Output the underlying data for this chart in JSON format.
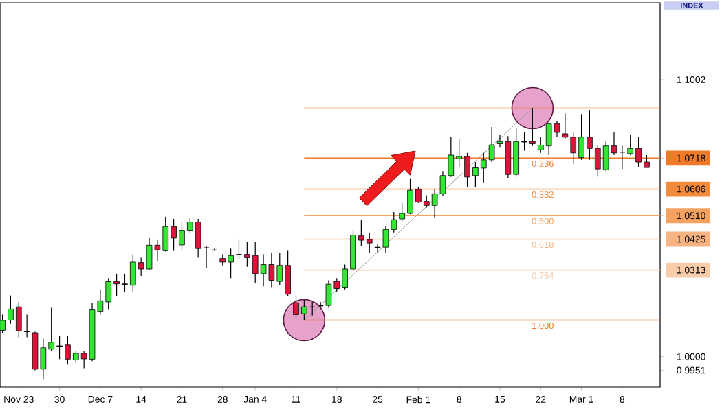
{
  "chart_data": {
    "type": "candlestick",
    "categories": [
      null,
      null,
      "Nov 23",
      null,
      null,
      null,
      null,
      "30",
      null,
      null,
      null,
      null,
      "Dec 7",
      null,
      null,
      null,
      null,
      "14",
      null,
      null,
      null,
      null,
      "21",
      null,
      null,
      null,
      null,
      "28",
      null,
      null,
      null,
      "Jan 4",
      null,
      null,
      null,
      null,
      "11",
      null,
      null,
      null,
      null,
      "18",
      null,
      null,
      null,
      null,
      "25",
      null,
      null,
      null,
      null,
      "Feb 1",
      null,
      null,
      null,
      null,
      "8",
      null,
      null,
      null,
      null,
      "15",
      null,
      null,
      null,
      null,
      "22",
      null,
      null,
      null,
      null,
      "Mar 1",
      null,
      null,
      null,
      null,
      "8",
      null,
      null,
      null
    ],
    "ohlc": [
      [
        1.0095,
        1.0152,
        1.0086,
        1.0131
      ],
      [
        1.0132,
        1.0221,
        1.0119,
        1.0172
      ],
      [
        1.018,
        1.0197,
        1.007,
        1.0093
      ],
      [
        1.0091,
        1.0152,
        1.007,
        1.009
      ],
      [
        1.0086,
        1.009,
        0.9951,
        0.9955
      ],
      [
        0.9955,
        1.0065,
        0.9917,
        1.0032
      ],
      [
        1.0027,
        1.0177,
        1.002,
        1.0052
      ],
      [
        1.0039,
        1.0075,
        0.9991,
        1.0037
      ],
      [
        1.0042,
        1.0075,
        0.9971,
        0.9991
      ],
      [
        0.9988,
        1.002,
        0.9979,
        1.0012
      ],
      [
        1.0012,
        1.002,
        0.9958,
        0.9992
      ],
      [
        0.9991,
        1.0193,
        0.9984,
        1.0169
      ],
      [
        1.0164,
        1.0243,
        1.0152,
        1.0202
      ],
      [
        1.0198,
        1.0284,
        1.0169,
        1.0271
      ],
      [
        1.0271,
        1.03,
        1.0218,
        1.0263
      ],
      [
        1.0263,
        1.03,
        1.0235,
        1.0261
      ],
      [
        1.0258,
        1.037,
        1.0235,
        1.0342
      ],
      [
        1.034,
        1.0358,
        1.0292,
        1.0317
      ],
      [
        1.0317,
        1.0429,
        1.0312,
        1.0403
      ],
      [
        1.0403,
        1.0422,
        1.0347,
        1.0386
      ],
      [
        1.0383,
        1.0506,
        1.038,
        1.047
      ],
      [
        1.047,
        1.0498,
        1.0383,
        1.0429
      ],
      [
        1.0404,
        1.0485,
        1.0386,
        1.0457
      ],
      [
        1.0457,
        1.0501,
        1.0449,
        1.0487
      ],
      [
        1.0487,
        1.0498,
        1.0358,
        1.0391
      ],
      [
        1.0394,
        1.0399,
        1.032,
        1.0393
      ],
      [
        1.0386,
        1.0391,
        1.0383,
        1.0385
      ],
      [
        1.0355,
        1.037,
        1.033,
        1.0342
      ],
      [
        1.0342,
        1.0391,
        1.0284,
        1.0366
      ],
      [
        1.037,
        1.0422,
        1.0353,
        1.0368
      ],
      [
        1.037,
        1.0416,
        1.0325,
        1.0358
      ],
      [
        1.0366,
        1.0416,
        1.0267,
        1.03
      ],
      [
        1.03,
        1.037,
        1.0254,
        1.0333
      ],
      [
        1.0333,
        1.0374,
        1.0251,
        1.0276
      ],
      [
        1.0272,
        1.0374,
        1.0259,
        1.033
      ],
      [
        1.033,
        1.0383,
        1.0218,
        1.0226
      ],
      [
        1.0195,
        1.0218,
        1.0144,
        1.0152
      ],
      [
        1.0155,
        1.021,
        1.0132,
        1.018
      ],
      [
        1.018,
        1.0202,
        1.0149,
        1.0179
      ],
      [
        1.0185,
        1.0198,
        1.0169,
        1.0183
      ],
      [
        1.0185,
        1.0276,
        1.0177,
        1.0262
      ],
      [
        1.0272,
        1.0284,
        1.0234,
        1.0246
      ],
      [
        1.0251,
        1.0333,
        1.0243,
        1.0317
      ],
      [
        1.0317,
        1.0457,
        1.0314,
        1.044
      ],
      [
        1.0437,
        1.0495,
        1.0399,
        1.0421
      ],
      [
        1.0424,
        1.0449,
        1.0374,
        1.0411
      ],
      [
        1.0396,
        1.0407,
        1.0374,
        1.0394
      ],
      [
        1.0396,
        1.0473,
        1.0374,
        1.046
      ],
      [
        1.046,
        1.0523,
        1.0449,
        1.0495
      ],
      [
        1.0498,
        1.0556,
        1.049,
        1.0518
      ],
      [
        1.0518,
        1.0643,
        1.0515,
        1.0602
      ],
      [
        1.0605,
        1.0614,
        1.0556,
        1.0559
      ],
      [
        1.0561,
        1.0584,
        1.0539,
        1.0547
      ],
      [
        1.0547,
        1.0605,
        1.0501,
        1.0589
      ],
      [
        1.0589,
        1.0671,
        1.0581,
        1.0655
      ],
      [
        1.0655,
        1.0795,
        1.065,
        1.0729
      ],
      [
        1.0716,
        1.0786,
        1.0687,
        1.0724
      ],
      [
        1.0724,
        1.0737,
        1.0613,
        1.065
      ],
      [
        1.0655,
        1.0704,
        1.0613,
        1.0683
      ],
      [
        1.0682,
        1.0737,
        1.063,
        1.0712
      ],
      [
        1.0712,
        1.0831,
        1.0704,
        1.0766
      ],
      [
        1.077,
        1.0803,
        1.0758,
        1.0778
      ],
      [
        1.0778,
        1.0798,
        1.0646,
        1.0659
      ],
      [
        1.0659,
        1.0827,
        1.0651,
        1.0778
      ],
      [
        1.0778,
        1.0811,
        1.0745,
        1.0776
      ],
      [
        1.0778,
        1.0899,
        1.0762,
        1.077
      ],
      [
        1.0748,
        1.0794,
        1.0737,
        1.0765
      ],
      [
        1.0762,
        1.0847,
        1.0729,
        1.0844
      ],
      [
        1.0844,
        1.0852,
        1.0794,
        1.0811
      ],
      [
        1.0806,
        1.088,
        1.0786,
        1.0794
      ],
      [
        1.0794,
        1.0811,
        1.0696,
        1.0737
      ],
      [
        1.072,
        1.0877,
        1.0712,
        1.0794
      ],
      [
        1.0794,
        1.089,
        1.0712,
        1.0753
      ],
      [
        1.0753,
        1.0765,
        1.0651,
        1.0679
      ],
      [
        1.0676,
        1.0778,
        1.0671,
        1.0762
      ],
      [
        1.0762,
        1.0811,
        1.0729,
        1.0737
      ],
      [
        1.074,
        1.0762,
        1.0679,
        1.0739
      ],
      [
        1.0734,
        1.0803,
        1.0729,
        1.0753
      ],
      [
        1.0753,
        1.0794,
        1.0687,
        1.0704
      ],
      [
        1.0704,
        1.0729,
        1.0684,
        1.0684
      ]
    ],
    "colors": [
      "#33e633",
      "#33e633",
      "#dc143c",
      "#000000",
      "#dc143c",
      "#33e633",
      "#33e633",
      "#000000",
      "#dc143c",
      "#33e633",
      "#dc143c",
      "#33e633",
      "#33e633",
      "#33e633",
      "#dc143c",
      "#000000",
      "#33e633",
      "#dc143c",
      "#33e633",
      "#dc143c",
      "#33e633",
      "#dc143c",
      "#33e633",
      "#33e633",
      "#dc143c",
      "#000000",
      "#000000",
      "#dc143c",
      "#33e633",
      "#000000",
      "#dc143c",
      "#dc143c",
      "#33e633",
      "#dc143c",
      "#33e633",
      "#dc143c",
      "#dc143c",
      "#33e633",
      "#000000",
      "#000000",
      "#33e633",
      "#dc143c",
      "#33e633",
      "#33e633",
      "#dc143c",
      "#dc143c",
      "#000000",
      "#33e633",
      "#33e633",
      "#33e633",
      "#33e633",
      "#dc143c",
      "#dc143c",
      "#33e633",
      "#33e633",
      "#33e633",
      "#33e633",
      "#dc143c",
      "#33e633",
      "#33e633",
      "#33e633",
      "#33e633",
      "#dc143c",
      "#33e633",
      "#000000",
      "#dc143c",
      "#33e633",
      "#33e633",
      "#dc143c",
      "#dc143c",
      "#dc143c",
      "#33e633",
      "#dc143c",
      "#dc143c",
      "#33e633",
      "#dc143c",
      "#000000",
      "#33e633",
      "#dc143c",
      "#dc143c"
    ],
    "ylim": [
      0.989,
      1.128
    ],
    "yticks": [
      {
        "value": 1.1002,
        "label": "1.1002"
      },
      {
        "value": 1.0718,
        "label": "1.0718"
      },
      {
        "value": 1.0606,
        "label": "1.0606"
      },
      {
        "value": 1.051,
        "label": "1.0510"
      },
      {
        "value": 1.0425,
        "label": "1.0425"
      },
      {
        "value": 1.0313,
        "label": "1.0313"
      },
      {
        "value": 1.0,
        "label": "1.0000"
      },
      {
        "value": 0.9951,
        "label": "0.9951"
      }
    ],
    "ref_lines": [
      {
        "axis": "y",
        "value": 1.0899,
        "color": "#f07a28"
      },
      {
        "axis": "y",
        "value": 1.0718,
        "color": "#f07a28"
      },
      {
        "axis": "y",
        "value": 1.0606,
        "color": "#f28c3c"
      },
      {
        "axis": "y",
        "value": 1.051,
        "color": "#f5a260"
      },
      {
        "axis": "y",
        "value": 1.0425,
        "color": "#f7b482"
      },
      {
        "axis": "y",
        "value": 1.0313,
        "color": "#f9ccaa"
      },
      {
        "axis": "y",
        "value": 1.0132,
        "color": "#f07a28"
      }
    ],
    "annotations": [
      "INDEX",
      {
        "text": "0.236",
        "y": 1.0718
      },
      {
        "text": "0.382",
        "y": 1.0606
      },
      {
        "text": "0.500",
        "y": 1.051
      },
      {
        "text": "0.618",
        "y": 1.0425
      },
      {
        "text": "0.764",
        "y": 1.0313
      },
      {
        "text": "1.000",
        "y": 1.0132
      }
    ]
  }
}
